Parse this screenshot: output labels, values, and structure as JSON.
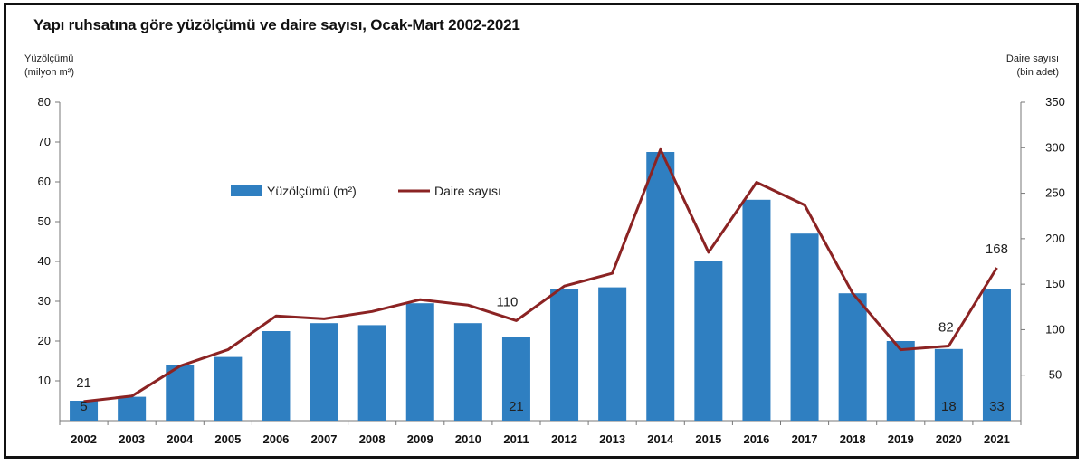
{
  "chart_data": {
    "type": "bar+line",
    "title": "Yapı ruhsatına göre yüzölçümü ve daire sayısı, Ocak-Mart 2002-2021",
    "y_left_label": [
      "Yüzölçümü",
      "(milyon m²)"
    ],
    "y_right_label": [
      "Daire sayısı",
      "(bin adet)"
    ],
    "categories": [
      "2002",
      "2003",
      "2004",
      "2005",
      "2006",
      "2007",
      "2008",
      "2009",
      "2010",
      "2011",
      "2012",
      "2013",
      "2014",
      "2015",
      "2016",
      "2017",
      "2018",
      "2019",
      "2020",
      "2021"
    ],
    "series": [
      {
        "name": "Yüzölçümü (m²)",
        "type": "bar",
        "axis": "left",
        "color": "#2f7fc1",
        "values": [
          5,
          6,
          14,
          16,
          22.5,
          24.5,
          24,
          29.5,
          24.5,
          21,
          33,
          33.5,
          67.5,
          40,
          55.5,
          47,
          32,
          20,
          18,
          33
        ]
      },
      {
        "name": "Daire sayısı",
        "type": "line",
        "axis": "right",
        "color": "#8b2323",
        "values": [
          21,
          27,
          60,
          78,
          115,
          112,
          120,
          133,
          127,
          110,
          148,
          162,
          298,
          185,
          262,
          237,
          140,
          78,
          82,
          168
        ]
      }
    ],
    "y_left": {
      "min": 0,
      "max": 80,
      "ticks": [
        "10",
        "20",
        "30",
        "40",
        "50",
        "60",
        "70",
        "80"
      ]
    },
    "y_right": {
      "min": 0,
      "max": 350,
      "ticks": [
        "50",
        "100",
        "150",
        "200",
        "250",
        "300",
        "350"
      ]
    },
    "data_labels": [
      {
        "series": 0,
        "index": 0,
        "text": "5"
      },
      {
        "series": 0,
        "index": 9,
        "text": "21"
      },
      {
        "series": 0,
        "index": 18,
        "text": "18"
      },
      {
        "series": 0,
        "index": 19,
        "text": "33"
      },
      {
        "series": 1,
        "index": 0,
        "text": "21"
      },
      {
        "series": 1,
        "index": 9,
        "text": "110"
      },
      {
        "series": 1,
        "index": 18,
        "text": "82"
      },
      {
        "series": 1,
        "index": 19,
        "text": "168"
      }
    ],
    "legend": [
      "Yüzölçümü (m²)",
      "Daire sayısı"
    ],
    "legend_position": "inside-top-left",
    "grid": false
  }
}
